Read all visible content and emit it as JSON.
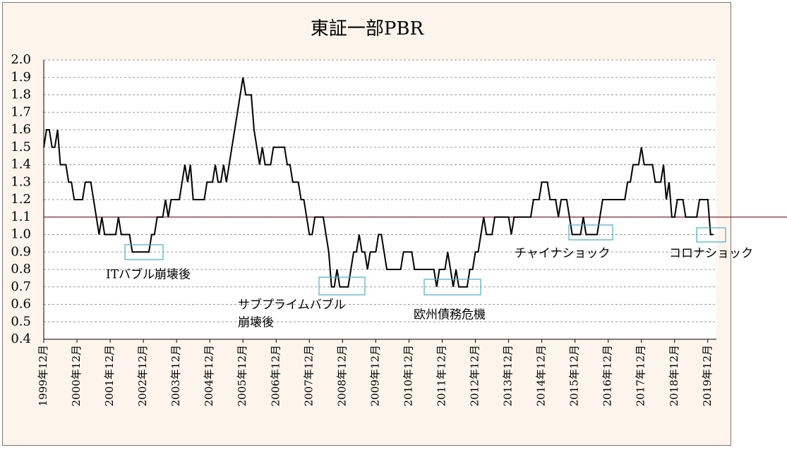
{
  "chart_data": {
    "type": "line",
    "title": "東証一部PBR",
    "categories": [
      "1999年12月",
      null,
      null,
      null,
      null,
      null,
      null,
      null,
      null,
      null,
      null,
      null,
      "2000年12月",
      null,
      null,
      null,
      null,
      null,
      null,
      null,
      null,
      null,
      null,
      null,
      "2001年12月",
      null,
      null,
      null,
      null,
      null,
      null,
      null,
      null,
      null,
      null,
      null,
      "2002年12月",
      null,
      null,
      null,
      null,
      null,
      null,
      null,
      null,
      null,
      null,
      null,
      "2003年12月",
      null,
      null,
      null,
      null,
      null,
      null,
      null,
      null,
      null,
      null,
      null,
      "2004年12月",
      null,
      null,
      null,
      null,
      null,
      null,
      null,
      null,
      null,
      null,
      null,
      "2005年12月",
      null,
      null,
      null,
      null,
      null,
      null,
      null,
      null,
      null,
      null,
      null,
      "2006年12月",
      null,
      null,
      null,
      null,
      null,
      null,
      null,
      null,
      null,
      null,
      null,
      "2007年12月",
      null,
      null,
      null,
      null,
      null,
      null,
      null,
      null,
      null,
      null,
      null,
      "2008年12月",
      null,
      null,
      null,
      null,
      null,
      null,
      null,
      null,
      null,
      null,
      null,
      "2009年12月",
      null,
      null,
      null,
      null,
      null,
      null,
      null,
      null,
      null,
      null,
      null,
      "2010年12月",
      null,
      null,
      null,
      null,
      null,
      null,
      null,
      null,
      null,
      null,
      null,
      "2011年12月",
      null,
      null,
      null,
      null,
      null,
      null,
      null,
      null,
      null,
      null,
      null,
      "2012年12月",
      null,
      null,
      null,
      null,
      null,
      null,
      null,
      null,
      null,
      null,
      null,
      "2013年12月",
      null,
      null,
      null,
      null,
      null,
      null,
      null,
      null,
      null,
      null,
      null,
      "2014年12月",
      null,
      null,
      null,
      null,
      null,
      null,
      null,
      null,
      null,
      null,
      null,
      "2015年12月",
      null,
      null,
      null,
      null,
      null,
      null,
      null,
      null,
      null,
      null,
      null,
      "2016年12月",
      null,
      null,
      null,
      null,
      null,
      null,
      null,
      null,
      null,
      null,
      null,
      "2017年12月",
      null,
      null,
      null,
      null,
      null,
      null,
      null,
      null,
      null,
      null,
      null,
      "2018年12月",
      null,
      null,
      null,
      null,
      null,
      null,
      null,
      null,
      null,
      null,
      null,
      "2019年12月",
      null,
      null
    ],
    "series": [
      {
        "color": "#000000",
        "values": [
          1.5,
          1.6,
          1.6,
          1.5,
          1.5,
          1.6,
          1.4,
          1.4,
          1.4,
          1.3,
          1.3,
          1.2,
          1.2,
          1.2,
          1.2,
          1.3,
          1.3,
          1.3,
          1.2,
          1.1,
          1.0,
          1.1,
          1.0,
          1.0,
          1.0,
          1.0,
          1.0,
          1.1,
          1.0,
          1.0,
          1.0,
          1.0,
          0.9,
          0.9,
          0.9,
          0.9,
          0.9,
          0.9,
          0.9,
          1.0,
          1.0,
          1.1,
          1.1,
          1.1,
          1.2,
          1.1,
          1.2,
          1.2,
          1.2,
          1.2,
          1.3,
          1.4,
          1.3,
          1.4,
          1.2,
          1.2,
          1.2,
          1.2,
          1.2,
          1.3,
          1.3,
          1.3,
          1.4,
          1.3,
          1.3,
          1.4,
          1.3,
          1.4,
          1.5,
          1.6,
          1.7,
          1.8,
          1.9,
          1.8,
          1.8,
          1.8,
          1.6,
          1.5,
          1.4,
          1.5,
          1.4,
          1.4,
          1.4,
          1.5,
          1.5,
          1.5,
          1.5,
          1.5,
          1.4,
          1.4,
          1.3,
          1.3,
          1.3,
          1.2,
          1.2,
          1.1,
          1.0,
          1.0,
          1.1,
          1.1,
          1.1,
          1.1,
          1.0,
          0.9,
          0.7,
          0.7,
          0.8,
          0.7,
          0.7,
          0.7,
          0.7,
          0.8,
          0.9,
          0.9,
          1.0,
          0.9,
          0.9,
          0.8,
          0.9,
          0.9,
          0.9,
          1.0,
          1.0,
          0.9,
          0.8,
          0.8,
          0.8,
          0.8,
          0.8,
          0.8,
          0.9,
          0.9,
          0.9,
          0.9,
          0.8,
          0.8,
          0.8,
          0.8,
          0.8,
          0.8,
          0.8,
          0.8,
          0.7,
          0.8,
          0.8,
          0.8,
          0.9,
          0.8,
          0.7,
          0.8,
          0.7,
          0.7,
          0.7,
          0.7,
          0.8,
          0.8,
          0.9,
          0.9,
          1.0,
          1.1,
          1.0,
          1.0,
          1.0,
          1.1,
          1.1,
          1.1,
          1.1,
          1.1,
          1.1,
          1.0,
          1.1,
          1.1,
          1.1,
          1.1,
          1.1,
          1.1,
          1.1,
          1.2,
          1.2,
          1.2,
          1.3,
          1.3,
          1.3,
          1.2,
          1.2,
          1.2,
          1.1,
          1.2,
          1.2,
          1.2,
          1.1,
          1.0,
          1.0,
          1.0,
          1.0,
          1.1,
          1.0,
          1.0,
          1.0,
          1.0,
          1.0,
          1.1,
          1.2,
          1.2,
          1.2,
          1.2,
          1.2,
          1.2,
          1.2,
          1.2,
          1.2,
          1.3,
          1.3,
          1.4,
          1.4,
          1.4,
          1.5,
          1.4,
          1.4,
          1.4,
          1.4,
          1.3,
          1.3,
          1.3,
          1.4,
          1.2,
          1.3,
          1.1,
          1.1,
          1.2,
          1.2,
          1.2,
          1.1,
          1.1,
          1.1,
          1.1,
          1.1,
          1.2,
          1.2,
          1.2,
          1.2,
          1.0,
          1.0
        ]
      }
    ],
    "ylim": [
      0.4,
      2.0
    ],
    "yticks": [
      {
        "value": 0.4,
        "label": "0.4"
      },
      {
        "value": 0.5,
        "label": "0.5"
      },
      {
        "value": 0.6,
        "label": "0.6"
      },
      {
        "value": 0.7,
        "label": "0.7"
      },
      {
        "value": 0.8,
        "label": "0.8"
      },
      {
        "value": 0.9,
        "label": "0.9"
      },
      {
        "value": 1.0,
        "label": "1.0"
      },
      {
        "value": 1.1,
        "label": "1.1"
      },
      {
        "value": 1.2,
        "label": "1.2"
      },
      {
        "value": 1.3,
        "label": "1.3"
      },
      {
        "value": 1.4,
        "label": "1.4"
      },
      {
        "value": 1.5,
        "label": "1.5"
      },
      {
        "value": 1.6,
        "label": "1.6"
      },
      {
        "value": 1.7,
        "label": "1.7"
      },
      {
        "value": 1.8,
        "label": "1.8"
      },
      {
        "value": 1.9,
        "label": "1.9"
      },
      {
        "value": 2.0,
        "label": "2.0"
      }
    ],
    "grid": true,
    "reference_line": {
      "value": 1.1,
      "color": "#7b2c3a"
    },
    "annotations": [
      {
        "lines": [
          "ITバブル崩壊後"
        ]
      },
      {
        "lines": [
          "サブプライムバブル",
          "崩壊後"
        ]
      },
      {
        "lines": [
          "欧州債務危機"
        ]
      },
      {
        "lines": [
          "チャイナショック"
        ]
      },
      {
        "lines": [
          "コロナショック"
        ]
      }
    ],
    "annotation_color": "#4bacc6"
  }
}
